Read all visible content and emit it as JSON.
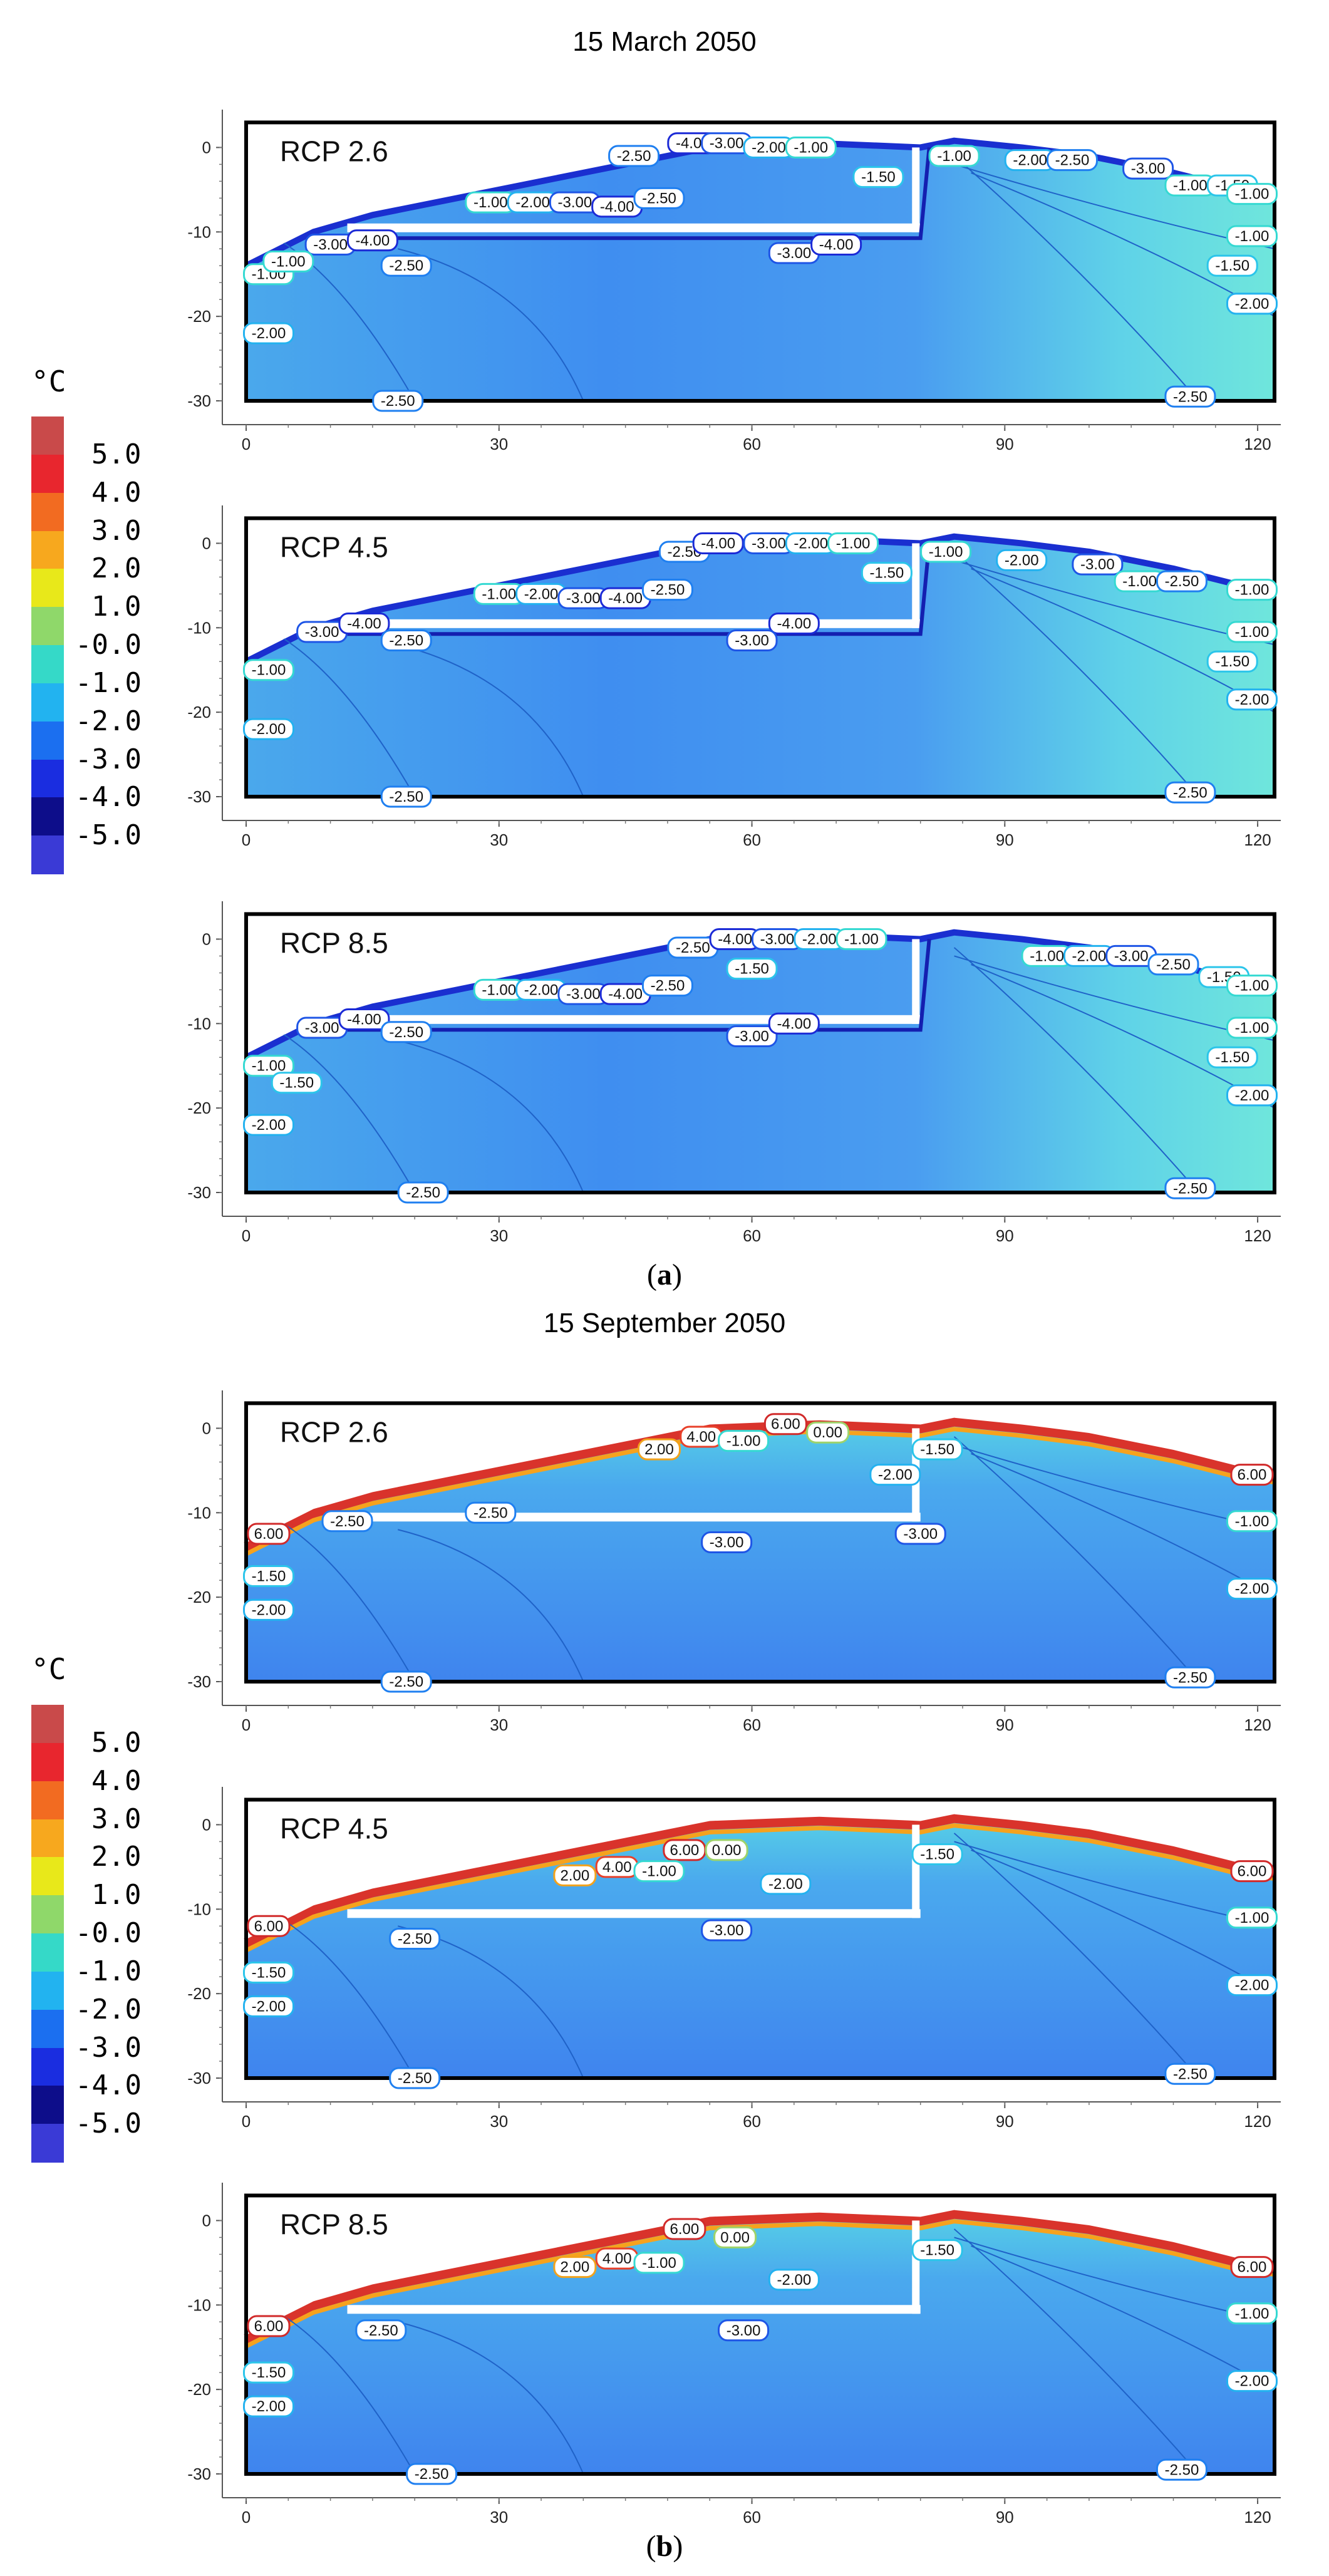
{
  "figure": {
    "unit": "°C",
    "panel_a_title": "15  March  2050",
    "panel_b_title": "15  September  2050",
    "panel_a_label": "a",
    "panel_b_label": "b"
  },
  "colorbar": {
    "ticks": [
      "5.0",
      "4.0",
      "3.0",
      "2.0",
      "1.0",
      "-0.0",
      "-1.0",
      "-2.0",
      "-3.0",
      "-4.0",
      "-5.0"
    ],
    "colors": [
      "#c94a4a",
      "#e8262e",
      "#f26b21",
      "#f7a81e",
      "#e8e81a",
      "#8fd86a",
      "#35d9c8",
      "#22b3f0",
      "#1b6ff0",
      "#1a2de0",
      "#0d0d8a",
      "#3a3ad6"
    ]
  },
  "chart_data": [
    {
      "type": "contour",
      "title": "15  March  2050",
      "scenario": "RCP 2.6",
      "xlim": [
        0,
        122
      ],
      "ylim": [
        -30,
        3
      ],
      "xticks": [
        "0",
        "30",
        "60",
        "90",
        "120"
      ],
      "yticks": [
        "0",
        "-10",
        "-20",
        "-30"
      ],
      "contour_labels": [
        {
          "text": "-4.00",
          "x": 53,
          "y": 0.5
        },
        {
          "text": "-3.00",
          "x": 57,
          "y": 0.5
        },
        {
          "text": "-2.00",
          "x": 62,
          "y": 0
        },
        {
          "text": "-2.50",
          "x": 46,
          "y": -1
        },
        {
          "text": "-1.00",
          "x": 67,
          "y": 0
        },
        {
          "text": "-1.50",
          "x": 75,
          "y": -3.5
        },
        {
          "text": "-1.00",
          "x": 29,
          "y": -6.5
        },
        {
          "text": "-2.00",
          "x": 34,
          "y": -6.5
        },
        {
          "text": "-3.00",
          "x": 39,
          "y": -6.5
        },
        {
          "text": "-4.00",
          "x": 44,
          "y": -7
        },
        {
          "text": "-2.50",
          "x": 49,
          "y": -6
        },
        {
          "text": "-3.00",
          "x": 10,
          "y": -11.5
        },
        {
          "text": "-4.00",
          "x": 15,
          "y": -11
        },
        {
          "text": "-2.50",
          "x": 19,
          "y": -14
        },
        {
          "text": "-1.00",
          "x": 1,
          "y": -15
        },
        {
          "text": "-1.00",
          "x": 5,
          "y": -13.5
        },
        {
          "text": "-3.00",
          "x": 65,
          "y": -12.5
        },
        {
          "text": "-4.00",
          "x": 70,
          "y": -11.5
        },
        {
          "text": "-2.00",
          "x": 1,
          "y": -22
        },
        {
          "text": "-2.50",
          "x": 18,
          "y": -30
        },
        {
          "text": "-1.00",
          "x": 84,
          "y": -1
        },
        {
          "text": "-2.00",
          "x": 93,
          "y": -1.5
        },
        {
          "text": "-2.50",
          "x": 98,
          "y": -1.5
        },
        {
          "text": "-3.00",
          "x": 107,
          "y": -2.5
        },
        {
          "text": "-1.00",
          "x": 112,
          "y": -4.5
        },
        {
          "text": "-1.50",
          "x": 117,
          "y": -4.5
        },
        {
          "text": "-1.00",
          "x": 122,
          "y": -5.5
        },
        {
          "text": "-1.00",
          "x": 122,
          "y": -10.5
        },
        {
          "text": "-1.50",
          "x": 117,
          "y": -14
        },
        {
          "text": "-2.00",
          "x": 122,
          "y": -18.5
        },
        {
          "text": "-2.50",
          "x": 112,
          "y": -29.5
        }
      ]
    },
    {
      "type": "contour",
      "title": "15  March  2050",
      "scenario": "RCP 4.5",
      "xlim": [
        0,
        122
      ],
      "ylim": [
        -30,
        3
      ],
      "xticks": [
        "0",
        "30",
        "60",
        "90",
        "120"
      ],
      "yticks": [
        "0",
        "-10",
        "-20",
        "-30"
      ],
      "contour_labels": [
        {
          "text": "-2.50",
          "x": 52,
          "y": -1
        },
        {
          "text": "-4.00",
          "x": 56,
          "y": 0
        },
        {
          "text": "-3.00",
          "x": 62,
          "y": 0
        },
        {
          "text": "-2.00",
          "x": 67,
          "y": 0
        },
        {
          "text": "-1.00",
          "x": 72,
          "y": 0
        },
        {
          "text": "-1.50",
          "x": 76,
          "y": -3.5
        },
        {
          "text": "-1.00",
          "x": 30,
          "y": -6
        },
        {
          "text": "-2.00",
          "x": 35,
          "y": -6
        },
        {
          "text": "-3.00",
          "x": 40,
          "y": -6.5
        },
        {
          "text": "-4.00",
          "x": 45,
          "y": -6.5
        },
        {
          "text": "-2.50",
          "x": 50,
          "y": -5.5
        },
        {
          "text": "-3.00",
          "x": 9,
          "y": -10.5
        },
        {
          "text": "-4.00",
          "x": 14,
          "y": -9.5
        },
        {
          "text": "-2.50",
          "x": 19,
          "y": -11.5
        },
        {
          "text": "-4.00",
          "x": 65,
          "y": -9.5
        },
        {
          "text": "-3.00",
          "x": 60,
          "y": -11.5
        },
        {
          "text": "-1.00",
          "x": 1,
          "y": -15
        },
        {
          "text": "-2.00",
          "x": 1,
          "y": -22
        },
        {
          "text": "-2.50",
          "x": 19,
          "y": -30
        },
        {
          "text": "-1.00",
          "x": 83,
          "y": -1
        },
        {
          "text": "-2.00",
          "x": 92,
          "y": -2
        },
        {
          "text": "-3.00",
          "x": 101,
          "y": -2.5
        },
        {
          "text": "-1.00",
          "x": 106,
          "y": -4.5
        },
        {
          "text": "-2.50",
          "x": 111,
          "y": -4.5
        },
        {
          "text": "-1.00",
          "x": 122,
          "y": -5.5
        },
        {
          "text": "-1.00",
          "x": 122,
          "y": -10.5
        },
        {
          "text": "-1.50",
          "x": 117,
          "y": -14
        },
        {
          "text": "-2.00",
          "x": 122,
          "y": -18.5
        },
        {
          "text": "-2.50",
          "x": 112,
          "y": -29.5
        }
      ]
    },
    {
      "type": "contour",
      "title": "15  March  2050",
      "scenario": "RCP 8.5",
      "xlim": [
        0,
        122
      ],
      "ylim": [
        -30,
        3
      ],
      "xticks": [
        "0",
        "30",
        "60",
        "90",
        "120"
      ],
      "yticks": [
        "0",
        "-10",
        "-20",
        "-30"
      ],
      "contour_labels": [
        {
          "text": "-2.50",
          "x": 53,
          "y": -1
        },
        {
          "text": "-4.00",
          "x": 58,
          "y": 0
        },
        {
          "text": "-3.00",
          "x": 63,
          "y": 0
        },
        {
          "text": "-2.00",
          "x": 68,
          "y": 0
        },
        {
          "text": "-1.00",
          "x": 73,
          "y": 0
        },
        {
          "text": "-1.50",
          "x": 60,
          "y": -3.5
        },
        {
          "text": "-1.00",
          "x": 30,
          "y": -6
        },
        {
          "text": "-2.00",
          "x": 35,
          "y": -6
        },
        {
          "text": "-3.00",
          "x": 40,
          "y": -6.5
        },
        {
          "text": "-4.00",
          "x": 45,
          "y": -6.5
        },
        {
          "text": "-2.50",
          "x": 50,
          "y": -5.5
        },
        {
          "text": "-3.00",
          "x": 9,
          "y": -10.5
        },
        {
          "text": "-4.00",
          "x": 14,
          "y": -9.5
        },
        {
          "text": "-2.50",
          "x": 19,
          "y": -11
        },
        {
          "text": "-3.00",
          "x": 60,
          "y": -11.5
        },
        {
          "text": "-4.00",
          "x": 65,
          "y": -10
        },
        {
          "text": "-1.00",
          "x": 1,
          "y": -15
        },
        {
          "text": "-1.50",
          "x": 6,
          "y": -17
        },
        {
          "text": "-2.00",
          "x": 1,
          "y": -22
        },
        {
          "text": "-2.50",
          "x": 21,
          "y": -30
        },
        {
          "text": "-1.00",
          "x": 95,
          "y": -2
        },
        {
          "text": "-2.00",
          "x": 100,
          "y": -2
        },
        {
          "text": "-3.00",
          "x": 105,
          "y": -2
        },
        {
          "text": "-2.50",
          "x": 110,
          "y": -3
        },
        {
          "text": "-1.50",
          "x": 116,
          "y": -4.5
        },
        {
          "text": "-1.00",
          "x": 122,
          "y": -5.5
        },
        {
          "text": "-1.00",
          "x": 122,
          "y": -10.5
        },
        {
          "text": "-1.50",
          "x": 117,
          "y": -14
        },
        {
          "text": "-2.00",
          "x": 122,
          "y": -18.5
        },
        {
          "text": "-2.50",
          "x": 112,
          "y": -29.5
        }
      ]
    },
    {
      "type": "contour",
      "title": "15  September  2050",
      "scenario": "RCP 2.6",
      "xlim": [
        0,
        122
      ],
      "ylim": [
        -30,
        3
      ],
      "xticks": [
        "0",
        "30",
        "60",
        "90",
        "120"
      ],
      "yticks": [
        "0",
        "-10",
        "-20",
        "-30"
      ],
      "contour_labels": [
        {
          "text": "2.00",
          "x": 49,
          "y": -2.5
        },
        {
          "text": "4.00",
          "x": 54,
          "y": -1
        },
        {
          "text": "6.00",
          "x": 64,
          "y": 0.5
        },
        {
          "text": "0.00",
          "x": 69,
          "y": -0.5
        },
        {
          "text": "-1.00",
          "x": 59,
          "y": -1.5
        },
        {
          "text": "-2.00",
          "x": 77,
          "y": -5.5
        },
        {
          "text": "-1.50",
          "x": 82,
          "y": -2.5
        },
        {
          "text": "6.00",
          "x": 0,
          "y": -12.5
        },
        {
          "text": "-2.50",
          "x": 12,
          "y": -11
        },
        {
          "text": "-2.50",
          "x": 29,
          "y": -10
        },
        {
          "text": "-3.00",
          "x": 57,
          "y": -13.5
        },
        {
          "text": "-3.00",
          "x": 80,
          "y": -12.5
        },
        {
          "text": "-1.50",
          "x": 1,
          "y": -17.5
        },
        {
          "text": "-2.00",
          "x": 1,
          "y": -21.5
        },
        {
          "text": "-2.50",
          "x": 19,
          "y": -30
        },
        {
          "text": "6.00",
          "x": 122,
          "y": -5.5
        },
        {
          "text": "-1.00",
          "x": 122,
          "y": -11
        },
        {
          "text": "-2.00",
          "x": 122,
          "y": -19
        },
        {
          "text": "-2.50",
          "x": 112,
          "y": -29.5
        }
      ]
    },
    {
      "type": "contour",
      "title": "15  September  2050",
      "scenario": "RCP 4.5",
      "xlim": [
        0,
        122
      ],
      "ylim": [
        -30,
        3
      ],
      "xticks": [
        "0",
        "30",
        "60",
        "90",
        "120"
      ],
      "yticks": [
        "0",
        "-10",
        "-20",
        "-30"
      ],
      "contour_labels": [
        {
          "text": "2.00",
          "x": 39,
          "y": -6
        },
        {
          "text": "4.00",
          "x": 44,
          "y": -5
        },
        {
          "text": "6.00",
          "x": 52,
          "y": -3
        },
        {
          "text": "0.00",
          "x": 57,
          "y": -3
        },
        {
          "text": "-1.00",
          "x": 49,
          "y": -5.5
        },
        {
          "text": "-2.00",
          "x": 64,
          "y": -7
        },
        {
          "text": "-1.50",
          "x": 82,
          "y": -3.5
        },
        {
          "text": "6.00",
          "x": 0,
          "y": -12
        },
        {
          "text": "-2.50",
          "x": 20,
          "y": -13.5
        },
        {
          "text": "-3.00",
          "x": 57,
          "y": -12.5
        },
        {
          "text": "-1.50",
          "x": 1,
          "y": -17.5
        },
        {
          "text": "-2.00",
          "x": 1,
          "y": -21.5
        },
        {
          "text": "-2.50",
          "x": 20,
          "y": -30
        },
        {
          "text": "6.00",
          "x": 122,
          "y": -5.5
        },
        {
          "text": "-1.00",
          "x": 122,
          "y": -11
        },
        {
          "text": "-2.00",
          "x": 122,
          "y": -19
        },
        {
          "text": "-2.50",
          "x": 112,
          "y": -29.5
        }
      ]
    },
    {
      "type": "contour",
      "title": "15  September  2050",
      "scenario": "RCP 8.5",
      "xlim": [
        0,
        122
      ],
      "ylim": [
        -30,
        3
      ],
      "xticks": [
        "0",
        "30",
        "60",
        "90",
        "120"
      ],
      "yticks": [
        "0",
        "-10",
        "-20",
        "-30"
      ],
      "contour_labels": [
        {
          "text": "2.00",
          "x": 39,
          "y": -5.5
        },
        {
          "text": "4.00",
          "x": 44,
          "y": -4.5
        },
        {
          "text": "6.00",
          "x": 52,
          "y": -1
        },
        {
          "text": "0.00",
          "x": 58,
          "y": -2
        },
        {
          "text": "-1.00",
          "x": 49,
          "y": -5
        },
        {
          "text": "-2.00",
          "x": 65,
          "y": -7
        },
        {
          "text": "-1.50",
          "x": 82,
          "y": -3.5
        },
        {
          "text": "6.00",
          "x": 0,
          "y": -12.5
        },
        {
          "text": "-2.50",
          "x": 16,
          "y": -13
        },
        {
          "text": "-3.00",
          "x": 59,
          "y": -13
        },
        {
          "text": "-1.50",
          "x": 1,
          "y": -18
        },
        {
          "text": "-2.00",
          "x": 1,
          "y": -22
        },
        {
          "text": "-2.50",
          "x": 22,
          "y": -30
        },
        {
          "text": "6.00",
          "x": 122,
          "y": -5.5
        },
        {
          "text": "-1.00",
          "x": 122,
          "y": -11
        },
        {
          "text": "-2.00",
          "x": 122,
          "y": -19
        },
        {
          "text": "-2.50",
          "x": 111,
          "y": -29.5
        }
      ]
    }
  ]
}
